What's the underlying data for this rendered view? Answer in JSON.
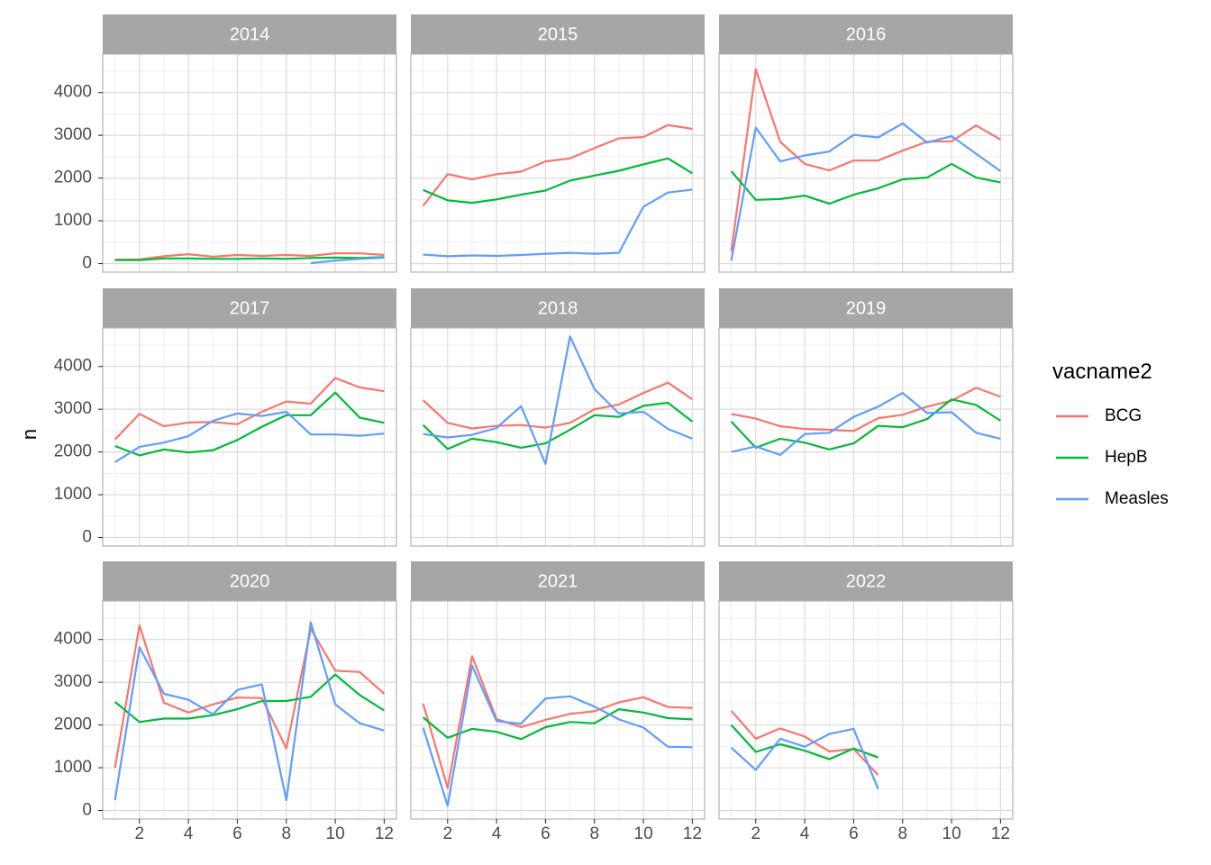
{
  "chart_data": {
    "type": "line",
    "xlabel": "",
    "ylabel": "n",
    "xlim": [
      0.5,
      12.5
    ],
    "ylim": [
      -200,
      4900
    ],
    "x_ticks": [
      2,
      4,
      6,
      8,
      10,
      12
    ],
    "y_ticks": [
      0,
      1000,
      2000,
      3000,
      4000
    ],
    "grid": true,
    "legend": {
      "title": "vacname2",
      "placement": "right",
      "entries": [
        {
          "name": "BCG",
          "color": "#F8766D"
        },
        {
          "name": "HepB",
          "color": "#00BA38"
        },
        {
          "name": "Measles",
          "color": "#619CFF"
        }
      ]
    },
    "panels": [
      {
        "label": "2014",
        "series": [
          {
            "name": "BCG",
            "x": [
              1,
              2,
              3,
              4,
              5,
              6,
              7,
              8,
              9,
              10,
              11,
              12
            ],
            "values": [
              90,
              100,
              170,
              220,
              160,
              200,
              180,
              200,
              180,
              240,
              240,
              200
            ]
          },
          {
            "name": "HepB",
            "x": [
              1,
              2,
              3,
              4,
              5,
              6,
              7,
              8,
              9,
              10,
              11,
              12
            ],
            "values": [
              80,
              80,
              120,
              120,
              110,
              110,
              120,
              110,
              130,
              140,
              130,
              150
            ]
          },
          {
            "name": "Measles",
            "x": [
              9,
              10,
              11,
              12
            ],
            "values": [
              10,
              70,
              110,
              140
            ]
          }
        ]
      },
      {
        "label": "2015",
        "series": [
          {
            "name": "BCG",
            "x": [
              1,
              2,
              3,
              4,
              5,
              6,
              7,
              8,
              9,
              10,
              11,
              12
            ],
            "values": [
              1350,
              2090,
              1970,
              2090,
              2150,
              2390,
              2460,
              2700,
              2930,
              2960,
              3240,
              3150
            ]
          },
          {
            "name": "HepB",
            "x": [
              1,
              2,
              3,
              4,
              5,
              6,
              7,
              8,
              9,
              10,
              11,
              12
            ],
            "values": [
              1720,
              1480,
              1420,
              1500,
              1610,
              1710,
              1940,
              2060,
              2170,
              2320,
              2460,
              2110
            ]
          },
          {
            "name": "Measles",
            "x": [
              1,
              2,
              3,
              4,
              5,
              6,
              7,
              8,
              9,
              10,
              11,
              12
            ],
            "values": [
              210,
              170,
              190,
              180,
              200,
              230,
              250,
              230,
              250,
              1330,
              1660,
              1730
            ]
          }
        ]
      },
      {
        "label": "2016",
        "series": [
          {
            "name": "BCG",
            "x": [
              1,
              2,
              3,
              4,
              5,
              6,
              7,
              8,
              9,
              10,
              11,
              12
            ],
            "values": [
              280,
              4540,
              2850,
              2330,
              2180,
              2410,
              2410,
              2640,
              2850,
              2860,
              3230,
              2900
            ]
          },
          {
            "name": "HepB",
            "x": [
              1,
              2,
              3,
              4,
              5,
              6,
              7,
              8,
              9,
              10,
              11,
              12
            ],
            "values": [
              2160,
              1490,
              1510,
              1590,
              1400,
              1610,
              1760,
              1970,
              2010,
              2330,
              2010,
              1900
            ]
          },
          {
            "name": "Measles",
            "x": [
              1,
              2,
              3,
              4,
              5,
              6,
              7,
              8,
              9,
              10,
              11,
              12
            ],
            "values": [
              70,
              3180,
              2390,
              2530,
              2620,
              3010,
              2950,
              3280,
              2830,
              2980,
              2570,
              2160
            ]
          }
        ]
      },
      {
        "label": "2017",
        "series": [
          {
            "name": "BCG",
            "x": [
              1,
              2,
              3,
              4,
              5,
              6,
              7,
              8,
              9,
              10,
              11,
              12
            ],
            "values": [
              2290,
              2890,
              2600,
              2690,
              2700,
              2650,
              2940,
              3180,
              3130,
              3730,
              3510,
              3420
            ]
          },
          {
            "name": "HepB",
            "x": [
              1,
              2,
              3,
              4,
              5,
              6,
              7,
              8,
              9,
              10,
              11,
              12
            ],
            "values": [
              2140,
              1920,
              2060,
              1990,
              2040,
              2280,
              2590,
              2860,
              2860,
              3390,
              2800,
              2680
            ]
          },
          {
            "name": "Measles",
            "x": [
              1,
              2,
              3,
              4,
              5,
              6,
              7,
              8,
              9,
              10,
              11,
              12
            ],
            "values": [
              1760,
              2120,
              2220,
              2370,
              2730,
              2900,
              2840,
              2940,
              2410,
              2410,
              2380,
              2430
            ]
          }
        ]
      },
      {
        "label": "2018",
        "series": [
          {
            "name": "BCG",
            "x": [
              1,
              2,
              3,
              4,
              5,
              6,
              7,
              8,
              9,
              10,
              11,
              12
            ],
            "values": [
              3210,
              2680,
              2550,
              2610,
              2630,
              2570,
              2680,
              3000,
              3110,
              3380,
              3620,
              3230
            ]
          },
          {
            "name": "HepB",
            "x": [
              1,
              2,
              3,
              4,
              5,
              6,
              7,
              8,
              9,
              10,
              11,
              12
            ],
            "values": [
              2630,
              2070,
              2310,
              2230,
              2100,
              2200,
              2520,
              2860,
              2820,
              3080,
              3150,
              2710
            ]
          },
          {
            "name": "Measles",
            "x": [
              1,
              2,
              3,
              4,
              5,
              6,
              7,
              8,
              9,
              10,
              11,
              12
            ],
            "values": [
              2420,
              2340,
              2400,
              2560,
              3070,
              1720,
              4700,
              3470,
              2900,
              2940,
              2540,
              2310
            ]
          }
        ]
      },
      {
        "label": "2019",
        "series": [
          {
            "name": "BCG",
            "x": [
              1,
              2,
              3,
              4,
              5,
              6,
              7,
              8,
              9,
              10,
              11,
              12
            ],
            "values": [
              2890,
              2780,
              2600,
              2540,
              2520,
              2490,
              2790,
              2870,
              3060,
              3200,
              3500,
              3290
            ]
          },
          {
            "name": "HepB",
            "x": [
              1,
              2,
              3,
              4,
              5,
              6,
              7,
              8,
              9,
              10,
              11,
              12
            ],
            "values": [
              2710,
              2100,
              2310,
              2220,
              2060,
              2200,
              2610,
              2580,
              2770,
              3230,
              3100,
              2730
            ]
          },
          {
            "name": "Measles",
            "x": [
              1,
              2,
              3,
              4,
              5,
              6,
              7,
              8,
              9,
              10,
              11,
              12
            ],
            "values": [
              2000,
              2130,
              1930,
              2420,
              2450,
              2820,
              3060,
              3380,
              2910,
              2930,
              2450,
              2310
            ]
          }
        ]
      },
      {
        "label": "2020",
        "series": [
          {
            "name": "BCG",
            "x": [
              1,
              2,
              3,
              4,
              5,
              6,
              7,
              8,
              9,
              10,
              11,
              12
            ],
            "values": [
              1000,
              4330,
              2520,
              2290,
              2480,
              2640,
              2630,
              1450,
              4250,
              3270,
              3240,
              2730
            ]
          },
          {
            "name": "HepB",
            "x": [
              1,
              2,
              3,
              4,
              5,
              6,
              7,
              8,
              9,
              10,
              11,
              12
            ],
            "values": [
              2540,
              2070,
              2150,
              2150,
              2230,
              2370,
              2560,
              2560,
              2660,
              3180,
              2700,
              2340
            ]
          },
          {
            "name": "Measles",
            "x": [
              1,
              2,
              3,
              4,
              5,
              6,
              7,
              8,
              9,
              10,
              11,
              12
            ],
            "values": [
              240,
              3820,
              2730,
              2590,
              2250,
              2820,
              2950,
              240,
              4400,
              2480,
              2040,
              1870
            ]
          }
        ]
      },
      {
        "label": "2021",
        "series": [
          {
            "name": "BCG",
            "x": [
              1,
              2,
              3,
              4,
              5,
              6,
              7,
              8,
              9,
              10,
              11,
              12
            ],
            "values": [
              2500,
              530,
              3610,
              2140,
              1950,
              2120,
              2260,
              2320,
              2530,
              2650,
              2420,
              2400
            ]
          },
          {
            "name": "HepB",
            "x": [
              1,
              2,
              3,
              4,
              5,
              6,
              7,
              8,
              9,
              10,
              11,
              12
            ],
            "values": [
              2180,
              1700,
              1910,
              1840,
              1670,
              1950,
              2070,
              2040,
              2370,
              2290,
              2160,
              2130
            ]
          },
          {
            "name": "Measles",
            "x": [
              1,
              2,
              3,
              4,
              5,
              6,
              7,
              8,
              9,
              10,
              11,
              12
            ],
            "values": [
              1940,
              110,
              3390,
              2090,
              2030,
              2620,
              2670,
              2430,
              2130,
              1940,
              1490,
              1480
            ]
          }
        ]
      },
      {
        "label": "2022",
        "series": [
          {
            "name": "BCG",
            "x": [
              1,
              2,
              3,
              4,
              5,
              6,
              7
            ],
            "values": [
              2330,
              1680,
              1920,
              1730,
              1380,
              1440,
              830
            ]
          },
          {
            "name": "HepB",
            "x": [
              1,
              2,
              3,
              4,
              5,
              6,
              7
            ],
            "values": [
              2000,
              1370,
              1550,
              1400,
              1200,
              1450,
              1240
            ]
          },
          {
            "name": "Measles",
            "x": [
              1,
              2,
              3,
              4,
              5,
              6,
              7
            ],
            "values": [
              1470,
              950,
              1680,
              1490,
              1790,
              1910,
              500
            ]
          }
        ]
      }
    ]
  }
}
